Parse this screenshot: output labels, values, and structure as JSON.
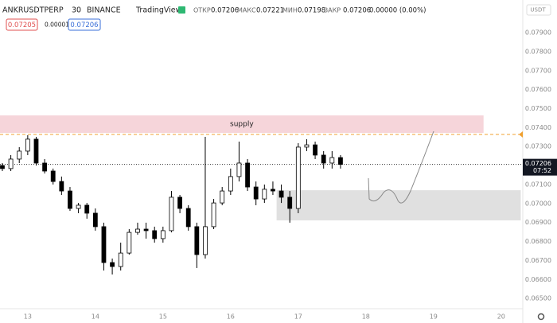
{
  "header": {
    "symbol": "ANKRUSDTPERP",
    "interval": "30",
    "exchange": "BINANCE",
    "source": "TradingView",
    "ohlc": [
      {
        "label": "ОТКР",
        "value": "0.07206"
      },
      {
        "label": "МАКС",
        "value": "0.07221"
      },
      {
        "label": "МИН",
        "value": "0.07198"
      },
      {
        "label": "ЗАКР",
        "value": "0.07206"
      }
    ],
    "change": "0.00000 (0.00%)",
    "bid": "0.07205",
    "spread": "0.00001",
    "ask": "0.07206",
    "currency": "USDT"
  },
  "chart_data": {
    "type": "candlestick",
    "x": [
      12.625,
      12.75,
      12.875,
      13,
      13.125,
      13.25,
      13.375,
      13.5,
      13.625,
      13.75,
      13.875,
      14,
      14.125,
      14.25,
      14.375,
      14.5,
      14.625,
      14.75,
      14.875,
      15,
      15.125,
      15.25,
      15.375,
      15.5,
      15.625,
      15.75,
      15.875,
      16,
      16.125,
      16.25,
      16.375,
      16.5,
      16.625,
      16.75,
      16.875,
      17,
      17.125,
      17.25,
      17.375,
      17.5,
      17.625
    ],
    "open": [
      0.072,
      0.07184,
      0.07234,
      0.07276,
      0.07339,
      0.07213,
      0.07171,
      0.07116,
      0.07066,
      0.06974,
      0.06991,
      0.06949,
      0.06878,
      0.06689,
      0.06668,
      0.06739,
      0.06848,
      0.06865,
      0.06857,
      0.06815,
      0.06857,
      0.07033,
      0.06974,
      0.06878,
      0.06731,
      0.06878,
      0.07003,
      0.07066,
      0.07142,
      0.07213,
      0.07087,
      0.07024,
      0.07075,
      0.07066,
      0.07033,
      0.06974,
      0.07297,
      0.07309,
      0.07255,
      0.07213,
      0.07242
    ],
    "high": [
      0.07213,
      0.07255,
      0.07297,
      0.0736,
      0.07351,
      0.07234,
      0.07184,
      0.07142,
      0.07087,
      0.07003,
      0.07003,
      0.06974,
      0.06899,
      0.0671,
      0.06794,
      0.06865,
      0.06899,
      0.06899,
      0.06878,
      0.06878,
      0.07066,
      0.07045,
      0.06991,
      0.06899,
      0.07351,
      0.07024,
      0.07087,
      0.07184,
      0.07326,
      0.07234,
      0.07116,
      0.071,
      0.07116,
      0.071,
      0.07066,
      0.07318,
      0.07339,
      0.07326,
      0.07276,
      0.07276,
      0.07255
    ],
    "low": [
      0.07171,
      0.07171,
      0.07213,
      0.07255,
      0.072,
      0.07158,
      0.071,
      0.07045,
      0.06961,
      0.06949,
      0.0692,
      0.06857,
      0.06647,
      0.06626,
      0.06647,
      0.06731,
      0.06836,
      0.06815,
      0.06794,
      0.06794,
      0.06848,
      0.06949,
      0.06857,
      0.0666,
      0.0671,
      0.06865,
      0.06991,
      0.07045,
      0.07116,
      0.07066,
      0.06991,
      0.07003,
      0.07045,
      0.07003,
      0.06899,
      0.06949,
      0.07276,
      0.07234,
      0.07184,
      0.07184,
      0.07184
    ],
    "close": [
      0.07184,
      0.07234,
      0.07276,
      0.07339,
      0.07213,
      0.07171,
      0.07116,
      0.07066,
      0.06974,
      0.06991,
      0.06949,
      0.06878,
      0.06689,
      0.06668,
      0.06739,
      0.06848,
      0.06865,
      0.06857,
      0.06815,
      0.06857,
      0.07033,
      0.06974,
      0.06878,
      0.06731,
      0.06878,
      0.07003,
      0.07066,
      0.07142,
      0.07213,
      0.07087,
      0.07024,
      0.07075,
      0.07066,
      0.07033,
      0.06974,
      0.07297,
      0.07309,
      0.07255,
      0.07213,
      0.07242,
      0.07206
    ],
    "up_color": "#ffffff",
    "down_color": "#000000",
    "xlim": [
      12.59,
      20.32
    ],
    "xticks": [
      13,
      14,
      15,
      16,
      17,
      18,
      19,
      20
    ],
    "ylim": [
      0.06446,
      0.08072
    ],
    "yticks": [
      {
        "value": 0.065,
        "label": "0.06500"
      },
      {
        "value": 0.066,
        "label": "0.06600"
      },
      {
        "value": 0.067,
        "label": "0.06700"
      },
      {
        "value": 0.068,
        "label": "0.06800"
      },
      {
        "value": 0.069,
        "label": "0.06900"
      },
      {
        "value": 0.07,
        "label": "0.07000"
      },
      {
        "value": 0.071,
        "label": "0.07100"
      },
      {
        "value": 0.072,
        "label": "0.07200"
      },
      {
        "value": 0.073,
        "label": "0.07300"
      },
      {
        "value": 0.074,
        "label": "0.07400"
      },
      {
        "value": 0.075,
        "label": "0.07500"
      },
      {
        "value": 0.076,
        "label": "0.07600"
      },
      {
        "value": 0.077,
        "label": "0.07700"
      },
      {
        "value": 0.078,
        "label": "0.07800"
      },
      {
        "value": 0.079,
        "label": "0.07900"
      }
    ],
    "zones": [
      {
        "label": "supply",
        "x": [
          12.59,
          19.74
        ],
        "y": [
          0.07372,
          0.07464
        ],
        "color": "#f6d5da"
      },
      {
        "x": [
          16.68,
          20.29
        ],
        "y": [
          0.06911,
          0.0707
        ],
        "color": "#e0e0e0"
      }
    ],
    "alert_level": 0.07364,
    "alert_color": "#f0a030",
    "last_price": {
      "value": 0.07206,
      "label": "0.07206",
      "countdown": "07:52"
    }
  }
}
